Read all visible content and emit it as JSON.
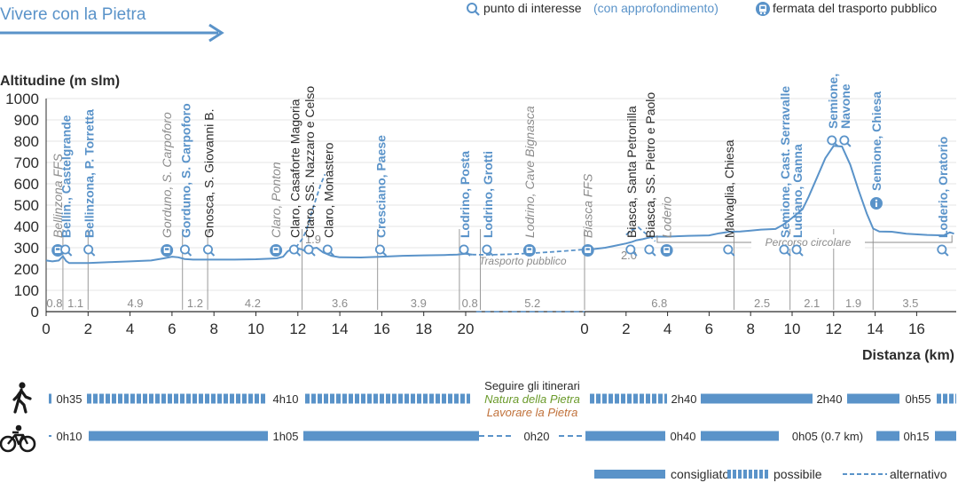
{
  "header": {
    "title": "Vivere con la Pietra",
    "legend_poi": "punto di interesse",
    "legend_poi_more": "(con approfondimento)",
    "legend_stop": "fermata del trasporto pubblico"
  },
  "colors": {
    "main": "#5a93c9",
    "dark": "#2b2b2b",
    "gray": "#8c8c8c",
    "green": "#6a9a2a",
    "orange": "#c0713a"
  },
  "icons": {
    "poi": "magnifier-icon",
    "info": "info-icon",
    "stop": "bus-stop-icon",
    "walk": "pedestrian-icon",
    "bike": "bicycle-icon"
  },
  "chart_data": {
    "type": "line",
    "ylabel": "Altitudine (m slm)",
    "xlabel": "Distanza (km)",
    "ylim": [
      0,
      1000
    ],
    "yticks": [
      "0",
      "100",
      "200",
      "300",
      "400",
      "500",
      "600",
      "700",
      "800",
      "900",
      "1000"
    ],
    "xticks_a": [
      "0",
      "2",
      "4",
      "6",
      "8",
      "10",
      "12",
      "14",
      "16",
      "18",
      "20"
    ],
    "xticks_b": [
      "0",
      "2",
      "4",
      "6",
      "8",
      "10",
      "12",
      "14",
      "16"
    ],
    "x_range_a": [
      0,
      20.3
    ],
    "x_range_b": [
      0,
      17.8
    ],
    "series_a": [
      [
        0,
        240
      ],
      [
        0.3,
        236
      ],
      [
        0.6,
        240
      ],
      [
        0.8,
        260
      ],
      [
        0.95,
        238
      ],
      [
        1.1,
        228
      ],
      [
        1.5,
        228
      ],
      [
        2,
        228
      ],
      [
        3,
        232
      ],
      [
        4,
        236
      ],
      [
        5,
        240
      ],
      [
        5.6,
        250
      ],
      [
        6,
        258
      ],
      [
        6.3,
        255
      ],
      [
        6.6,
        247
      ],
      [
        7,
        244
      ],
      [
        8,
        244
      ],
      [
        9,
        244
      ],
      [
        10,
        246
      ],
      [
        11,
        250
      ],
      [
        11.3,
        258
      ],
      [
        11.5,
        282
      ],
      [
        11.8,
        300
      ],
      [
        12.2,
        292
      ],
      [
        12.4,
        280
      ],
      [
        12.7,
        297
      ],
      [
        12.9,
        300
      ],
      [
        13.2,
        278
      ],
      [
        13.6,
        262
      ],
      [
        14,
        255
      ],
      [
        15,
        254
      ],
      [
        16,
        258
      ],
      [
        17,
        262
      ],
      [
        18,
        264
      ],
      [
        19,
        266
      ],
      [
        19.6,
        268
      ],
      [
        20,
        272
      ],
      [
        20.3,
        268
      ]
    ],
    "series_b": [
      [
        0,
        292
      ],
      [
        0.5,
        294
      ],
      [
        1,
        300
      ],
      [
        1.5,
        310
      ],
      [
        2,
        320
      ],
      [
        2.3,
        328
      ],
      [
        2.5,
        335
      ],
      [
        2.8,
        340
      ],
      [
        3,
        345
      ],
      [
        3.2,
        350
      ],
      [
        3.4,
        352
      ],
      [
        4,
        352
      ],
      [
        5,
        356
      ],
      [
        6,
        358
      ],
      [
        6.5,
        368
      ],
      [
        7,
        375
      ],
      [
        7.5,
        376
      ],
      [
        8,
        380
      ],
      [
        8.5,
        385
      ],
      [
        9.2,
        388
      ],
      [
        9.6,
        410
      ],
      [
        10,
        440
      ],
      [
        10.5,
        480
      ],
      [
        10.8,
        540
      ],
      [
        11.2,
        630
      ],
      [
        11.6,
        720
      ],
      [
        12,
        778
      ],
      [
        12.4,
        775
      ],
      [
        12.8,
        690
      ],
      [
        13.2,
        570
      ],
      [
        13.6,
        460
      ],
      [
        13.9,
        390
      ],
      [
        14.2,
        376
      ],
      [
        14.8,
        375
      ],
      [
        15.5,
        366
      ],
      [
        16.5,
        360
      ],
      [
        17.3,
        358
      ],
      [
        17.6,
        372
      ],
      [
        17.8,
        366
      ]
    ],
    "transport_link": [
      [
        20.3,
        268
      ],
      [
        20.9,
        262
      ]
    ],
    "ss_dashed": [
      [
        11.9,
        300
      ],
      [
        12.2,
        340
      ],
      [
        12.4,
        380
      ],
      [
        12.7,
        480
      ],
      [
        13.1,
        600
      ],
      [
        13.3,
        645
      ]
    ],
    "biasca_dashed": [
      [
        2.0,
        360
      ],
      [
        2.3,
        385
      ],
      [
        2.6,
        395
      ],
      [
        2.9,
        370
      ],
      [
        3.2,
        350
      ],
      [
        3.4,
        330
      ]
    ],
    "segments": [
      {
        "label": "0.8",
        "a": 0,
        "b": 0.8
      },
      {
        "label": "1.1",
        "a": 0.8,
        "b": 2.0
      },
      {
        "label": "4.9",
        "a": 2.0,
        "b": 6.5
      },
      {
        "label": "1.2",
        "a": 6.5,
        "b": 7.7
      },
      {
        "label": "4.2",
        "a": 7.7,
        "b": 12.0
      },
      {
        "label": "3.6",
        "a": 12.2,
        "b": 15.8
      },
      {
        "label": "3.9",
        "a": 15.8,
        "b": 19.7
      },
      {
        "label": "0.8",
        "a": 19.7,
        "b": 20.5
      },
      {
        "label": "5.2",
        "a": 20.5,
        "b": 23.0
      },
      {
        "label": "6.8",
        "a": 23.0,
        "b": 30.2
      },
      {
        "label": "2.5",
        "a": 30.2,
        "b": 32.9
      },
      {
        "label": "2.1",
        "a": 32.9,
        "b": 35.0
      },
      {
        "label": "1.9",
        "a": 35.0,
        "b": 36.9
      },
      {
        "label": "3.5",
        "a": 36.9,
        "b": 40.5
      }
    ],
    "annotations": [
      {
        "text": "Bellinzona FFS",
        "x": 0.6,
        "style": "gray-italic"
      },
      {
        "text": "Bellin., Castelgrande",
        "x": 1.0,
        "style": "blue-bold"
      },
      {
        "text": "Bellinzona, P. Torretta",
        "x": 2.1,
        "style": "blue-bold"
      },
      {
        "text": "Gorduno, S. Carpoforo",
        "x": 5.8,
        "style": "gray-italic"
      },
      {
        "text": "Gorduno, S. Carpoforo",
        "x": 6.7,
        "style": "blue-bold"
      },
      {
        "text": "Gnosca, S. Giovanni B.",
        "x": 7.8,
        "style": "dark"
      },
      {
        "text": "Claro, Ponton",
        "x": 11.0,
        "style": "gray-italic"
      },
      {
        "text": "Claro, Casaforte Magoria",
        "x": 11.9,
        "style": "dark"
      },
      {
        "text": "Claro, SS. Nazzaro e Celso",
        "x": 12.6,
        "style": "dark"
      },
      {
        "text": "Claro, Monastero",
        "x": 13.5,
        "style": "dark"
      },
      {
        "text": "Cresciano, Paese",
        "x": 16.0,
        "style": "blue-bold"
      },
      {
        "text": "Lodrino, Posta",
        "x": 20.0,
        "style": "blue-bold"
      },
      {
        "text": "Lodrino, Grotti",
        "x": 20.7,
        "style": "blue-bold"
      },
      {
        "text": "Lodrino, Cave Bignasca",
        "x": 21.7,
        "style": "gray-italic"
      },
      {
        "text": "Biasca FFS",
        "x": 23.2,
        "style": "gray-italic"
      },
      {
        "text": "Biasca, Santa Petronilla",
        "x": 25.3,
        "style": "dark"
      },
      {
        "text": "Biasca, SS. Pietro e Paolo",
        "x": 26.2,
        "style": "dark"
      },
      {
        "text": "Loderio",
        "x": 27.0,
        "style": "gray-italic"
      },
      {
        "text": "Malvaglia, Chiesa",
        "x": 30.0,
        "style": "dark"
      },
      {
        "text": "Semione, Cast. Serravalle",
        "x": 32.7,
        "style": "blue-bold"
      },
      {
        "text": "Ludiano, Ganna",
        "x": 33.3,
        "style": "blue-bold"
      },
      {
        "text": "Semione,",
        "x": 35.0,
        "style": "blue-bold"
      },
      {
        "text": "Navone",
        "x": 35.6,
        "style": "blue-bold"
      },
      {
        "text": "Semione, Chiesa",
        "x": 37.1,
        "style": "blue-bold"
      },
      {
        "text": "Loderio, Oratorio",
        "x": 40.3,
        "style": "blue-bold"
      }
    ],
    "notes": {
      "alt_distance_1": "1.9",
      "alt_distance_2": "2.0",
      "transport_label": "Trasporto pubblico",
      "loop_label": "Percorso circolare"
    }
  },
  "times": {
    "walk": [
      "0h35",
      "4h10",
      "2h40",
      "2h40",
      "0h55"
    ],
    "bike": [
      "0h10",
      "1h05",
      "0h20",
      "0h40",
      "0h05 (0.7 km)",
      "0h15"
    ],
    "follow_title": "Seguire gli itinerari",
    "follow_green": "Natura della Pietra",
    "follow_orange": "Lavorare la Pietra"
  },
  "bottom_legend": {
    "recommended": "consigliato",
    "possible": "possibile",
    "alternative": "alternativo"
  }
}
